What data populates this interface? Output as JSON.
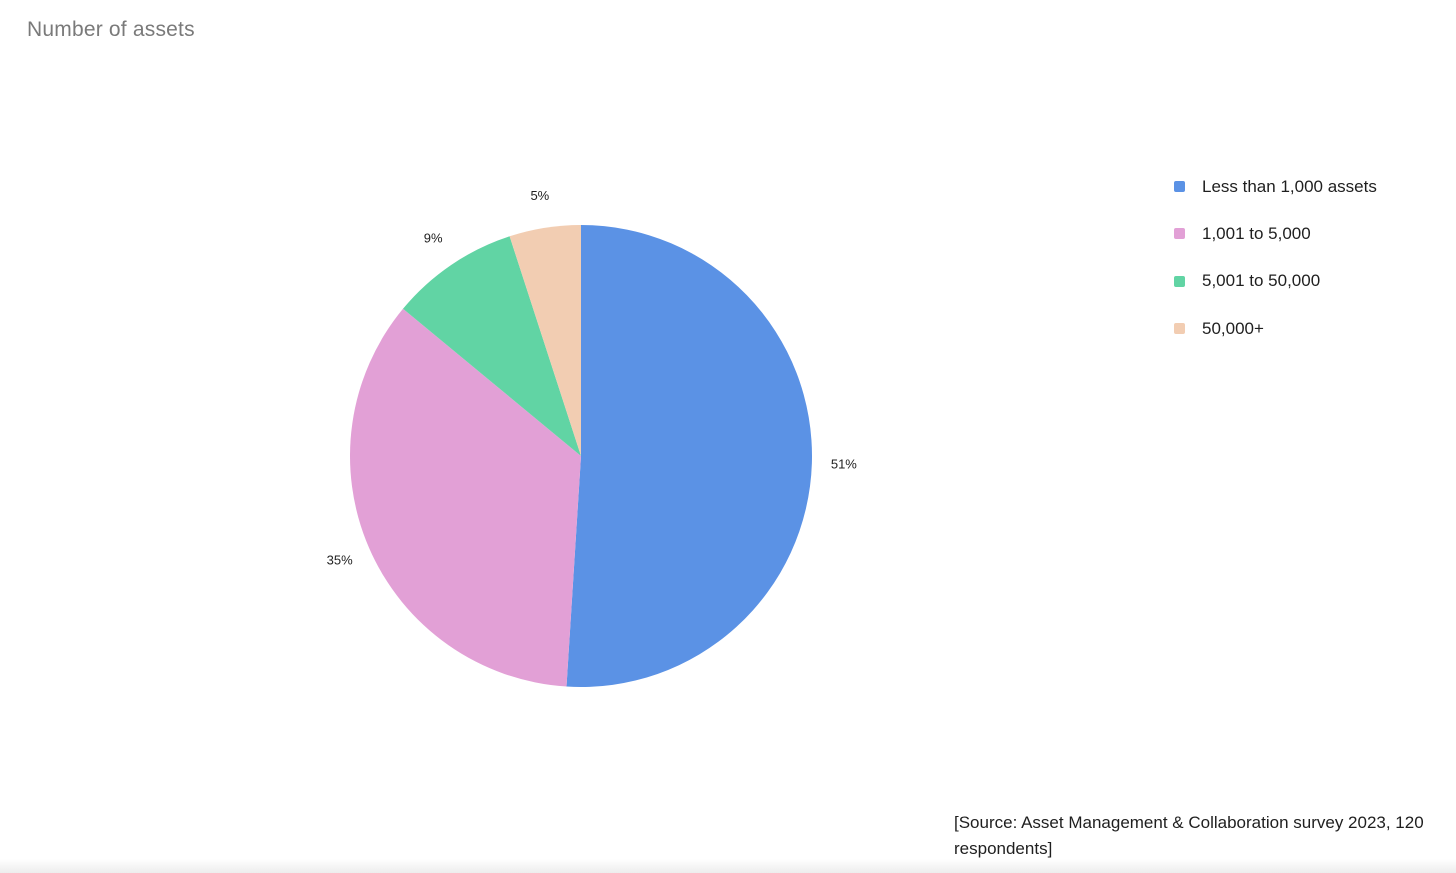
{
  "chart_data": {
    "type": "pie",
    "title": "Number of assets",
    "categories": [
      "Less than 1,000 assets",
      "1,001 to 5,000",
      "5,001 to 50,000",
      "50,000+"
    ],
    "values": [
      51,
      35,
      9,
      5
    ],
    "value_labels": [
      "51%",
      "35%",
      "9%",
      "5%"
    ],
    "colors": [
      "#5b92e5",
      "#e2a0d6",
      "#61d4a4",
      "#f2cdb2"
    ],
    "legend_position": "right",
    "start_angle": "top, clockwise"
  },
  "source_note": "[Source: Asset Management & Collaboration survey 2023, 120 respondents]"
}
